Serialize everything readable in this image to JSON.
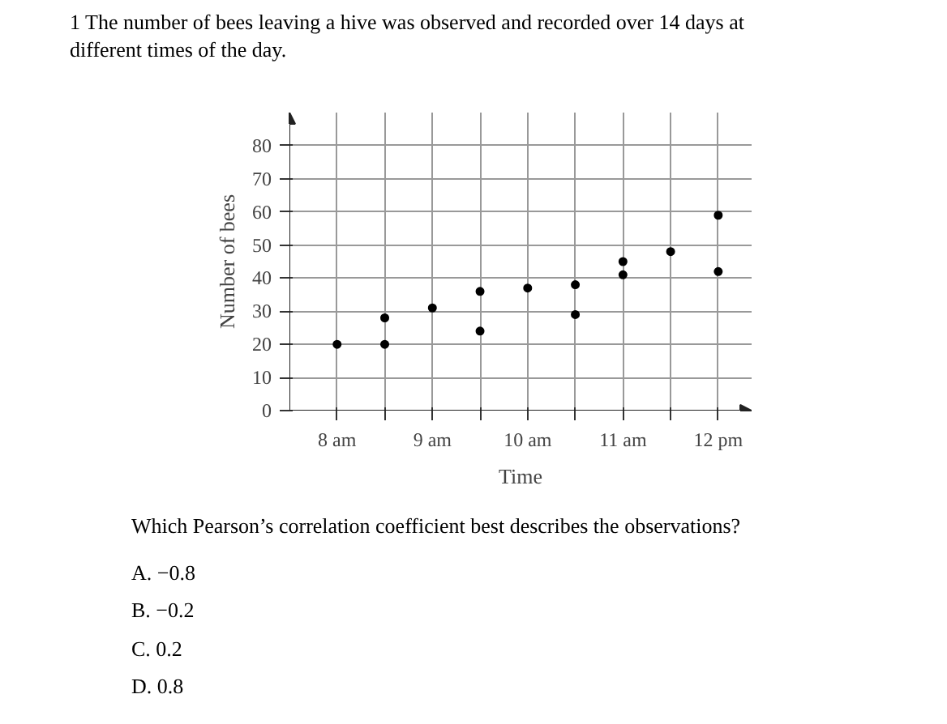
{
  "chart_data": {
    "type": "scatter",
    "title": "1    The number of bees leaving a hive was observed and recorded over 14 days at different times of the day.",
    "xlabel": "Time",
    "ylabel": "Number of bees",
    "x": [
      8,
      8.5,
      8.5,
      9,
      9.5,
      9.5,
      10,
      10.5,
      10.5,
      11,
      11,
      11.5,
      12,
      12
    ],
    "series": [
      {
        "color": "#000000",
        "values": [
          20,
          20,
          28,
          31,
          24,
          36,
          37,
          29,
          38,
          41,
          45,
          48,
          42,
          59
        ]
      }
    ],
    "xlim": [
      7.5,
      12.35
    ],
    "ylim": [
      0,
      90
    ],
    "xticks": [
      {
        "value": 8,
        "label": "8 am"
      },
      {
        "value": 8.5,
        "label": null
      },
      {
        "value": 9,
        "label": "9 am"
      },
      {
        "value": 9.5,
        "label": null
      },
      {
        "value": 10,
        "label": "10 am"
      },
      {
        "value": 10.5,
        "label": null
      },
      {
        "value": 11,
        "label": "11 am"
      },
      {
        "value": 11.5,
        "label": null
      },
      {
        "value": 12,
        "label": "12 pm"
      }
    ],
    "yticks": [
      0,
      10,
      20,
      30,
      40,
      50,
      60,
      70,
      80
    ],
    "grid": true,
    "marker": "circle",
    "annotations": [
      "Which Pearson’s correlation coefficient best describes the observations?",
      "A.    −0.8",
      "B.    −0.2",
      "C.    0.2",
      "D.    0.8"
    ]
  }
}
